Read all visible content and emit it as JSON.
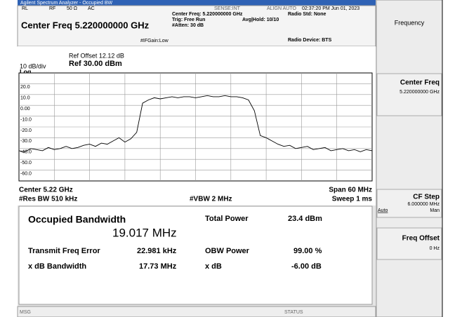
{
  "header": {
    "app_title": "Agilent Spectrum Analyzer - Occupied BW",
    "rl": "RL",
    "rf": "RF",
    "impedance": "50 Ω",
    "coupling": "AC",
    "sense": "SENSE:INT",
    "align": "ALIGN AUTO",
    "timestamp": "02:37:20 PM Jun 01, 2023",
    "center_freq": "Center Freq 5.220000000 GHz",
    "if_gain": "#IFGain:Low",
    "center_freq_info": "Center Freq: 5.220000000 GHz",
    "trig": "Trig: Free Run",
    "atten": "#Atten: 30 dB",
    "avg_hold": "Avg|Hold: 10/10",
    "radio_std": "Radio Std: None",
    "radio_device": "Radio Device: BTS"
  },
  "graph": {
    "ref_offset": "Ref Offset 12.12 dB",
    "scale": "10 dB/div",
    "ref_level": "Ref 30.00 dBm",
    "scale_type": "Log",
    "center": "Center  5.22 GHz",
    "res_bw": "#Res BW  510 kHz",
    "vbw": "#VBW  2 MHz",
    "span": "Span 60 MHz",
    "sweep": "Sweep  1 ms"
  },
  "trace": {
    "color": "#000000",
    "ylim": [
      -70,
      30
    ],
    "yticks": [
      {
        "value": 20,
        "label": "20.0"
      },
      {
        "value": 10,
        "label": "10.0"
      },
      {
        "value": 0,
        "label": "0.00"
      },
      {
        "value": -10,
        "label": "-10.0"
      },
      {
        "value": -20,
        "label": "-20.0"
      },
      {
        "value": -30,
        "label": "-30.0"
      },
      {
        "value": -40,
        "label": "-40.0"
      },
      {
        "value": -50,
        "label": "-50.0"
      },
      {
        "value": -60,
        "label": "-60.0"
      }
    ],
    "values": [
      -42,
      -43,
      -40,
      -41,
      -42,
      -39,
      -41,
      -40,
      -38,
      -40,
      -39,
      -37,
      -36,
      -38,
      -35,
      -36,
      -33,
      -30,
      -34,
      -31,
      -25,
      2,
      5,
      7,
      6,
      7,
      8,
      7,
      8,
      8,
      7,
      8,
      9,
      8,
      8,
      9,
      8,
      8,
      7,
      5,
      -5,
      -28,
      -30,
      -33,
      -36,
      -38,
      -37,
      -40,
      -39,
      -38,
      -41,
      -40,
      -39,
      -42,
      -41,
      -40,
      -42,
      -41,
      -43,
      -41,
      -42
    ]
  },
  "results": {
    "obw_label": "Occupied Bandwidth",
    "obw_value": "19.017 MHz",
    "total_power_label": "Total Power",
    "total_power_value": "23.4 dBm",
    "tfe_label": "Transmit Freq Error",
    "tfe_value": "22.981 kHz",
    "obw_power_label": "OBW Power",
    "obw_power_value": "99.00 %",
    "xdb_bw_label": "x dB Bandwidth",
    "xdb_bw_value": "17.73 MHz",
    "xdb_label": "x dB",
    "xdb_value": "-6.00 dB"
  },
  "status": {
    "msg": "MSG",
    "status": "STATUS"
  },
  "menu": {
    "title": "Frequency",
    "buttons": [
      {
        "label": "Center Freq",
        "value": "5.220000000 GHz"
      },
      {
        "label": "CF Step",
        "value": "6.000000 MHz",
        "auto": "Auto",
        "man": "Man"
      },
      {
        "label": "Freq Offset",
        "value": "0 Hz"
      }
    ]
  }
}
